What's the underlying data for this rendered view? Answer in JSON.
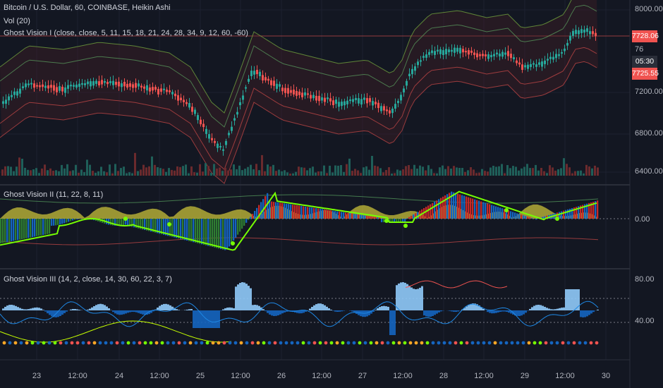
{
  "header": {
    "symbol_line": "Bitcoin / U.S. Dollar, 60, COINBASE, Heikin Ashi",
    "vol_line": "Vol (20)",
    "indicator1_line": "Ghost Vision I (close, close, 5, 11, 15, 18, 21, 24, 28, 34, 9, 12, 60, -60)"
  },
  "pane2": {
    "title": "Ghost Vision II (11, 22, 8, 11)"
  },
  "pane3": {
    "title": "Ghost Vision III (14, 2, close, 14, 30, 60, 22, 3, 7)"
  },
  "price_axis": {
    "ticks": [
      "8000.00",
      "7200.00",
      "6800.00",
      "6400.00"
    ],
    "partial_tick": "76"
  },
  "badges": {
    "last_price": "7728.06",
    "countdown": "05:30",
    "lower_price": "7725.55"
  },
  "pane2_axis": {
    "ticks": [
      "0.00"
    ]
  },
  "pane3_axis": {
    "ticks": [
      "80.00",
      "40.00"
    ]
  },
  "time_axis": {
    "ticks": [
      "23",
      "12:00",
      "24",
      "12:00",
      "25",
      "12:00",
      "26",
      "12:00",
      "27",
      "12:00",
      "28",
      "12:00",
      "29",
      "12:00",
      "30"
    ]
  },
  "colors": {
    "background": "#131722",
    "up_candle": "#26a69a",
    "down_candle": "#ef5350",
    "badge_red": "#f05350",
    "badge_dark": "#2a2e39",
    "histogram_blue": "#1565c0",
    "histogram_green": "#2e7d32",
    "histogram_red": "#c62828",
    "wave_yellow": "#c8c03a",
    "signal_lime": "#76ff03",
    "rsi_area": "#90caf9"
  }
}
